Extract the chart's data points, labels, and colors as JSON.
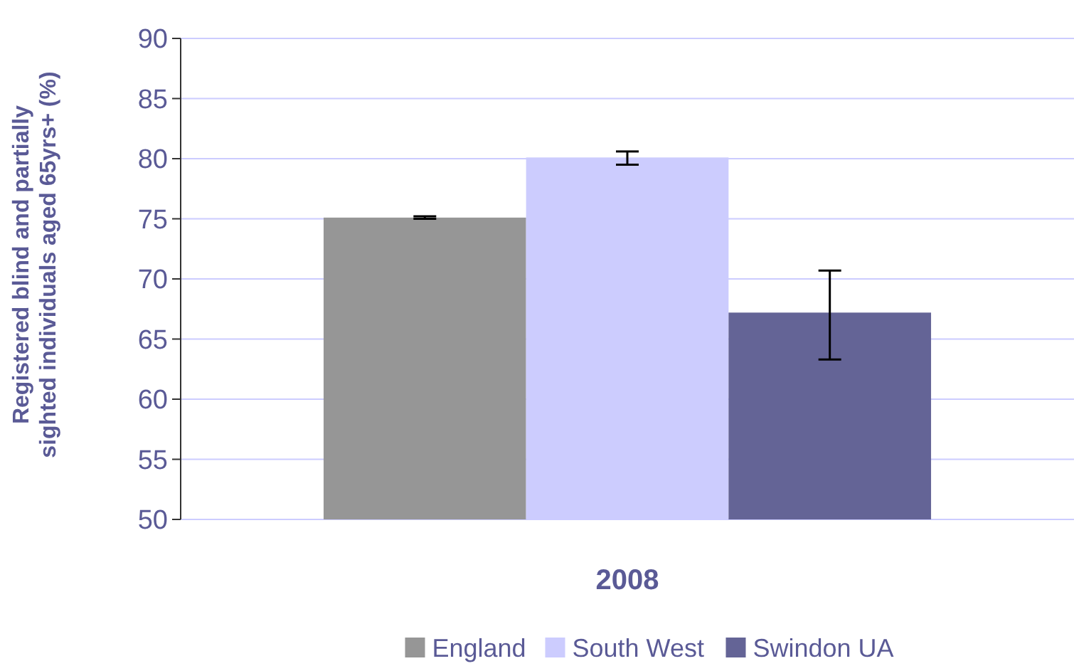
{
  "chart_data": {
    "type": "bar",
    "ylabel": "Registered blind and partially sighted individuals aged 65yrs+ (%)",
    "categories": [
      "2008"
    ],
    "series": [
      {
        "name": "England",
        "color": "#969696",
        "values": [
          75.1
        ],
        "errors": [
          0.1
        ]
      },
      {
        "name": "South West",
        "color": "#ccccfe",
        "values": [
          80.1
        ],
        "errors": [
          [
            79.5,
            80.6
          ]
        ]
      },
      {
        "name": "Swindon UA",
        "color": "#646496",
        "values": [
          67.2
        ],
        "errors": [
          [
            63.3,
            70.7
          ]
        ]
      }
    ],
    "ylim": [
      50,
      90
    ],
    "yticks": [
      50,
      55,
      60,
      65,
      70,
      75,
      80,
      85,
      90
    ],
    "grid": "y",
    "legend": "bottom"
  }
}
